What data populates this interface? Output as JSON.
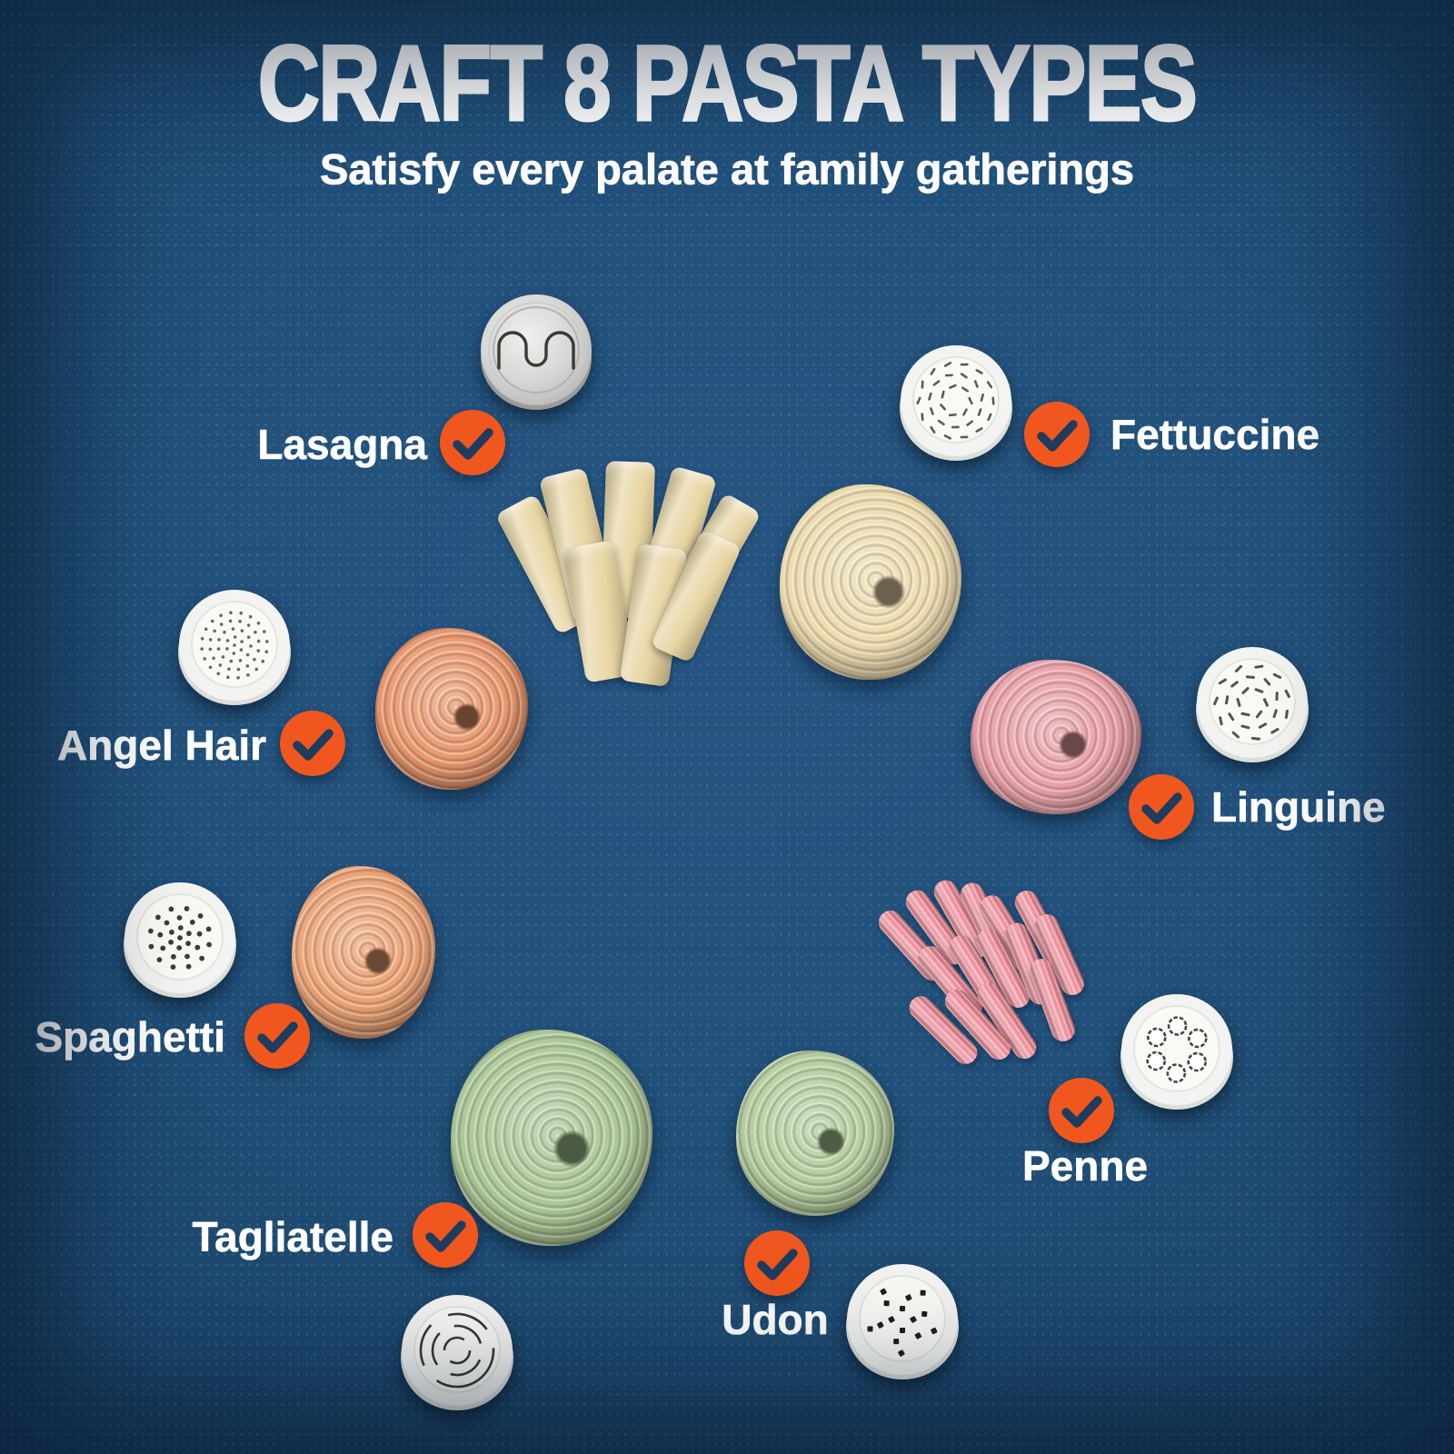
{
  "page": {
    "title": "CRAFT 8 PASTA TYPES",
    "subtitle": "Satisfy every palate at family gatherings"
  },
  "colors": {
    "background_blue": "#1F486D",
    "accent_orange": "#F0571E",
    "check_stroke_navy": "#1E3C5E",
    "label_text": "#FFFFFF",
    "disc_white": "#F3F4F1",
    "disc_metal_silver": "#D7D8D5"
  },
  "checkmark_icon": "check-icon",
  "items": [
    {
      "label": "Lasagna",
      "disc_icon": "lasagna-wide-slot-disc-icon",
      "disc_material": "metal",
      "pasta_form": "folded-ribbon-pile",
      "pasta_color": "#E8D5A2"
    },
    {
      "label": "Fettuccine",
      "disc_icon": "fettuccine-slot-disc-icon",
      "disc_material": "white",
      "pasta_form": "nest",
      "pasta_color": "#EDDCAE"
    },
    {
      "label": "Angel Hair",
      "disc_icon": "angel-hair-fine-hole-disc-icon",
      "disc_material": "white",
      "pasta_form": "nest",
      "pasta_color": "#E9976C"
    },
    {
      "label": "Linguine",
      "disc_icon": "linguine-slot-disc-icon",
      "disc_material": "white",
      "pasta_form": "nest",
      "pasta_color": "#E9A0A8"
    },
    {
      "label": "Spaghetti",
      "disc_icon": "spaghetti-hole-disc-icon",
      "disc_material": "white",
      "pasta_form": "nest",
      "pasta_color": "#ECA273"
    },
    {
      "label": "Penne",
      "disc_icon": "penne-ring-disc-icon",
      "disc_material": "white",
      "pasta_form": "tube-pile",
      "pasta_color": "#EC8794"
    },
    {
      "label": "Tagliatelle",
      "disc_icon": "tagliatelle-arc-slot-disc-icon",
      "disc_material": "white",
      "pasta_form": "nest",
      "pasta_color": "#ABC795"
    },
    {
      "label": "Udon",
      "disc_icon": "udon-hole-disc-icon",
      "disc_material": "white",
      "pasta_form": "nest",
      "pasta_color": "#B3CD9D"
    }
  ]
}
